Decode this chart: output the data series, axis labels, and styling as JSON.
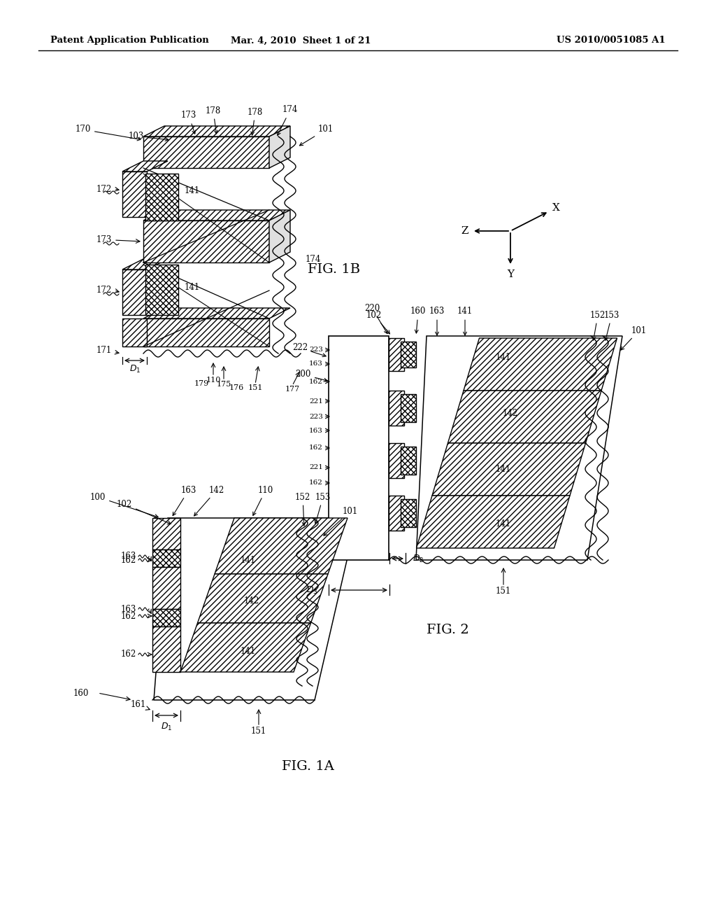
{
  "bg_color": "#ffffff",
  "line_color": "#000000",
  "header_left": "Patent Application Publication",
  "header_center": "Mar. 4, 2010  Sheet 1 of 21",
  "header_right": "US 2010/0051085 A1",
  "fig1a_label": "FIG. 1A",
  "fig1b_label": "FIG. 1B",
  "fig2_label": "FIG. 2",
  "axis_labels": [
    "X",
    "Y",
    "Z"
  ]
}
